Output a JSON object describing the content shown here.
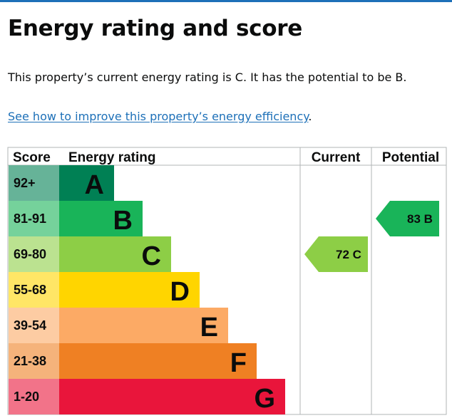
{
  "page": {
    "title": "Energy rating and score",
    "summary": "This property’s current energy rating is C. It has the potential to be B.",
    "link_text": "See how to improve this property’s energy efficiency",
    "link_suffix": "."
  },
  "colors": {
    "top_rule": "#1d70b8",
    "link": "#1d70b8",
    "grid": "#b1b4b6"
  },
  "chart_data": {
    "type": "table",
    "headers": {
      "score": "Score",
      "rating": "Energy rating",
      "current": "Current",
      "potential": "Potential"
    },
    "bands": [
      {
        "score": "92+",
        "letter": "A",
        "color": "#008054",
        "score_bg": "#66b398"
      },
      {
        "score": "81-91",
        "letter": "B",
        "color": "#19b459",
        "score_bg": "#75d29b"
      },
      {
        "score": "69-80",
        "letter": "C",
        "color": "#8dce46",
        "score_bg": "#bbe290"
      },
      {
        "score": "55-68",
        "letter": "D",
        "color": "#ffd500",
        "score_bg": "#ffe666"
      },
      {
        "score": "39-54",
        "letter": "E",
        "color": "#fcaa65",
        "score_bg": "#fdcca3"
      },
      {
        "score": "21-38",
        "letter": "F",
        "color": "#ef8023",
        "score_bg": "#f5b37b"
      },
      {
        "score": "1-20",
        "letter": "G",
        "color": "#e9153b",
        "score_bg": "#f27389"
      }
    ],
    "current": {
      "value": 72,
      "letter": "C",
      "text": "72  C",
      "color": "#8dce46"
    },
    "potential": {
      "value": 83,
      "letter": "B",
      "text": "83  B",
      "color": "#19b459"
    }
  }
}
